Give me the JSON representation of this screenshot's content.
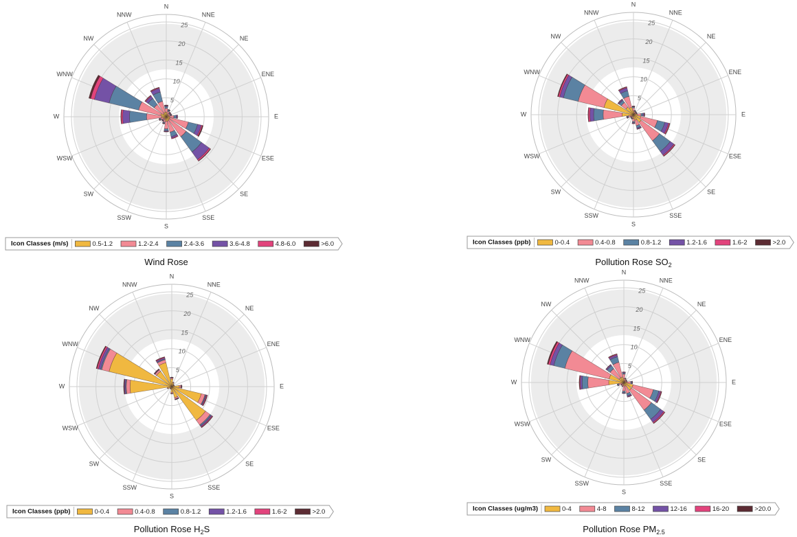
{
  "chart_data": [
    {
      "type": "rose",
      "title": "Wind Rose",
      "legend_title": "Icon Classes (m/s)",
      "categories": [
        "N",
        "NNE",
        "NE",
        "ENE",
        "E",
        "ESE",
        "SE",
        "SSE",
        "S",
        "SSW",
        "SW",
        "WSW",
        "W",
        "WNW",
        "NW",
        "NNW"
      ],
      "rlim": [
        0,
        25
      ],
      "rticks": [
        5,
        10,
        15,
        20,
        25
      ],
      "series": [
        {
          "name": "0.5-1.2",
          "color": "#f0b840",
          "values": [
            1.2,
            0.8,
            0.6,
            0.6,
            0.8,
            1.0,
            1.0,
            1.2,
            1.2,
            0.8,
            0.6,
            0.8,
            1.2,
            1.5,
            1.0,
            1.2
          ]
        },
        {
          "name": "1.2-2.4",
          "color": "#f28a94",
          "values": [
            1.0,
            0.7,
            0.5,
            0.5,
            1.2,
            5.0,
            5.5,
            3.0,
            2.0,
            0.7,
            0.5,
            0.7,
            4.0,
            6.0,
            3.0,
            3.0
          ]
        },
        {
          "name": "2.4-3.6",
          "color": "#5b82a3",
          "values": [
            0.5,
            0.3,
            0.2,
            0.2,
            0.6,
            2.5,
            5.0,
            1.2,
            0.5,
            0.3,
            0.2,
            0.3,
            4.5,
            8.0,
            2.0,
            2.5
          ]
        },
        {
          "name": "3.6-4.8",
          "color": "#7452a6",
          "values": [
            0.2,
            0.1,
            0.1,
            0.1,
            0.3,
            1.0,
            2.5,
            0.4,
            0.2,
            0.1,
            0.1,
            0.1,
            1.8,
            4.0,
            0.7,
            1.0
          ]
        },
        {
          "name": "4.8-6.0",
          "color": "#e2437c",
          "values": [
            0.1,
            0.1,
            0.1,
            0.1,
            0.1,
            0.3,
            0.4,
            0.2,
            0.1,
            0.1,
            0.1,
            0.1,
            0.4,
            1.0,
            0.2,
            0.2
          ]
        },
        {
          "name": ">6.0",
          "color": "#5c2b33",
          "values": [
            0.1,
            0,
            0,
            0,
            0,
            0.2,
            0.1,
            0,
            0,
            0,
            0,
            0,
            0.1,
            0.5,
            0.1,
            0.1
          ]
        }
      ]
    },
    {
      "type": "rose",
      "title": "Pollution Rose SO",
      "title_subscript": "2",
      "legend_title": "Icon Classes (ppb)",
      "categories": [
        "N",
        "NNE",
        "NE",
        "ENE",
        "E",
        "ESE",
        "SE",
        "SSE",
        "S",
        "SSW",
        "SW",
        "WSW",
        "W",
        "WNW",
        "NW",
        "NNW"
      ],
      "rlim": [
        0,
        25
      ],
      "rticks": [
        5,
        10,
        15,
        20,
        25
      ],
      "series": [
        {
          "name": "0-0.4",
          "color": "#f0b840",
          "values": [
            1.0,
            0.5,
            0.5,
            0.5,
            1.0,
            2.0,
            2.5,
            1.5,
            1.0,
            0.5,
            0.5,
            0.8,
            3.0,
            8.0,
            2.5,
            2.0
          ]
        },
        {
          "name": "0.4-0.8",
          "color": "#f28a94",
          "values": [
            0.8,
            0.4,
            0.3,
            0.3,
            1.0,
            4.5,
            6.0,
            1.5,
            0.8,
            0.4,
            0.3,
            0.6,
            5.0,
            7.0,
            1.5,
            3.0
          ]
        },
        {
          "name": "0.8-1.2",
          "color": "#5b82a3",
          "values": [
            0.3,
            0.2,
            0.1,
            0.1,
            0.5,
            2.0,
            3.5,
            0.6,
            0.3,
            0.2,
            0.1,
            0.3,
            2.5,
            4.0,
            0.7,
            1.5
          ]
        },
        {
          "name": "1.2-1.6",
          "color": "#7452a6",
          "values": [
            0.1,
            0.1,
            0.1,
            0.1,
            0.3,
            1.0,
            1.2,
            0.3,
            0.2,
            0.1,
            0.1,
            0.1,
            1.0,
            1.0,
            0.3,
            0.8
          ]
        },
        {
          "name": "1.6-2",
          "color": "#e2437c",
          "values": [
            0.1,
            0,
            0,
            0,
            0.1,
            0.3,
            0.3,
            0.1,
            0.1,
            0,
            0,
            0.1,
            0.4,
            0.4,
            0.1,
            0.2
          ]
        },
        {
          "name": ">2.0",
          "color": "#5c2b33",
          "values": [
            0,
            0,
            0,
            0,
            0.1,
            0.1,
            0.1,
            0,
            0,
            0,
            0,
            0,
            0.1,
            0.2,
            0,
            0.1
          ]
        }
      ]
    },
    {
      "type": "rose",
      "title": "Pollution Rose H",
      "title_subscript": "2",
      "title_suffix": "S",
      "legend_title": "Icon Classes (ppb)",
      "categories": [
        "N",
        "NNE",
        "NE",
        "ENE",
        "E",
        "ESE",
        "SE",
        "SSE",
        "S",
        "SSW",
        "SW",
        "WSW",
        "W",
        "WNW",
        "NW",
        "NNW"
      ],
      "rlim": [
        0,
        25
      ],
      "rticks": [
        5,
        10,
        15,
        20,
        25
      ],
      "series": [
        {
          "name": "0-0.4",
          "color": "#f0b840",
          "values": [
            2.0,
            1.0,
            0.6,
            0.6,
            2.0,
            8.0,
            11.0,
            3.0,
            1.5,
            0.6,
            0.5,
            1.0,
            11.0,
            17.0,
            5.0,
            6.5
          ]
        },
        {
          "name": "0.4-0.8",
          "color": "#f28a94",
          "values": [
            0.3,
            0.2,
            0.1,
            0.1,
            0.4,
            1.0,
            1.5,
            0.4,
            0.3,
            0.1,
            0.1,
            0.2,
            1.0,
            2.0,
            0.5,
            0.8
          ]
        },
        {
          "name": "0.8-1.2",
          "color": "#5b82a3",
          "values": [
            0.1,
            0,
            0,
            0,
            0.1,
            0.2,
            0.3,
            0.1,
            0.1,
            0,
            0,
            0,
            0.2,
            0.3,
            0.1,
            0.2
          ]
        },
        {
          "name": "1.2-1.6",
          "color": "#7452a6",
          "values": [
            0.1,
            0,
            0,
            0,
            0.1,
            0.2,
            0.3,
            0.1,
            0,
            0,
            0,
            0,
            0.3,
            0.6,
            0.1,
            0.3
          ]
        },
        {
          "name": "1.6-2",
          "color": "#e2437c",
          "values": [
            0,
            0,
            0,
            0,
            0.1,
            0.2,
            0.2,
            0,
            0,
            0,
            0,
            0,
            0.1,
            0.4,
            0.1,
            0.2
          ]
        },
        {
          "name": ">2.0",
          "color": "#5c2b33",
          "values": [
            0,
            0,
            0,
            0,
            0,
            0.1,
            0.1,
            0,
            0,
            0,
            0,
            0,
            0.1,
            0.2,
            0,
            0.1
          ]
        }
      ]
    },
    {
      "type": "rose",
      "title": "Pollution Rose PM",
      "title_subscript": "2.5",
      "legend_title": "Icon Classes (ug/m3)",
      "categories": [
        "N",
        "NNE",
        "NE",
        "ENE",
        "E",
        "ESE",
        "SE",
        "SSE",
        "S",
        "SSW",
        "SW",
        "WSW",
        "W",
        "WNW",
        "NW",
        "NNW"
      ],
      "rlim": [
        0,
        25
      ],
      "rticks": [
        5,
        10,
        15,
        20,
        25
      ],
      "series": [
        {
          "name": "0-4",
          "color": "#f0b840",
          "values": [
            1.0,
            0.5,
            0.4,
            0.4,
            0.8,
            2.5,
            2.5,
            1.0,
            0.8,
            0.5,
            0.4,
            0.6,
            4.0,
            4.0,
            1.5,
            1.5
          ]
        },
        {
          "name": "4-8",
          "color": "#f28a94",
          "values": [
            1.2,
            0.5,
            0.4,
            0.4,
            1.0,
            5.5,
            6.5,
            2.0,
            1.5,
            0.5,
            0.4,
            0.8,
            5.5,
            12.0,
            3.0,
            4.0
          ]
        },
        {
          "name": "8-12",
          "color": "#5b82a3",
          "values": [
            0.3,
            0.1,
            0.1,
            0.1,
            0.3,
            1.5,
            3.0,
            0.6,
            0.4,
            0.1,
            0.1,
            0.3,
            1.5,
            3.0,
            1.0,
            1.5
          ]
        },
        {
          "name": "12-16",
          "color": "#7452a6",
          "values": [
            0.2,
            0.1,
            0,
            0,
            0.1,
            0.5,
            1.0,
            0.3,
            0.2,
            0,
            0,
            0.1,
            0.5,
            1.0,
            0.3,
            0.5
          ]
        },
        {
          "name": "16-20",
          "color": "#e2437c",
          "values": [
            0.1,
            0,
            0,
            0,
            0.1,
            0.2,
            0.3,
            0.1,
            0,
            0,
            0,
            0,
            0.2,
            0.5,
            0.1,
            0.2
          ]
        },
        {
          "name": ">20.0",
          "color": "#5c2b33",
          "values": [
            0,
            0,
            0,
            0,
            0,
            0.1,
            0.1,
            0,
            0,
            0,
            0,
            0,
            0.1,
            0.3,
            0,
            0.1
          ]
        }
      ]
    }
  ]
}
